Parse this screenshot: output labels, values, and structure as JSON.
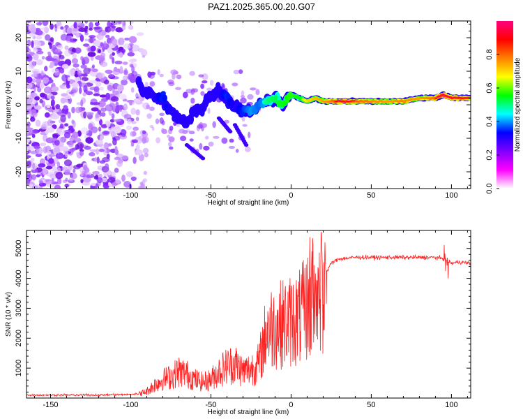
{
  "title": "PAZ1.2025.365.00.20.G07",
  "chart_data": [
    {
      "type": "heatmap",
      "name": "spectrogram",
      "xlabel": "Height of straight line (km)",
      "ylabel": "Frequency (Hz)",
      "xlim": [
        -165,
        112
      ],
      "ylim": [
        -25,
        25
      ],
      "xticks": [
        -150,
        -100,
        -50,
        0,
        50,
        100
      ],
      "yticks": [
        -20,
        -10,
        0,
        10,
        20
      ],
      "ridge": {
        "x": [
          -95,
          -90,
          -85,
          -80,
          -75,
          -70,
          -65,
          -60,
          -55,
          -50,
          -45,
          -40,
          -35,
          -30,
          -25,
          -20,
          -15,
          -10,
          -5,
          0,
          5,
          10,
          15,
          20,
          30,
          40,
          50,
          60,
          70,
          80,
          90,
          95,
          100,
          112
        ],
        "freq": [
          6,
          4,
          3,
          2,
          -2,
          -4,
          -5,
          -2,
          -1,
          3,
          4,
          2,
          -1,
          -2,
          -2,
          0,
          1,
          2,
          0,
          3,
          2,
          1,
          2,
          1,
          1,
          1,
          1,
          1,
          1,
          2,
          2,
          3,
          2,
          2
        ],
        "amplitude": [
          0.2,
          0.25,
          0.3,
          0.35,
          0.3,
          0.25,
          0.25,
          0.3,
          0.3,
          0.3,
          0.3,
          0.35,
          0.3,
          0.35,
          0.45,
          0.4,
          0.5,
          0.55,
          0.6,
          0.65,
          0.6,
          0.7,
          0.75,
          0.8,
          0.95,
          0.9,
          0.85,
          0.8,
          0.85,
          0.8,
          0.9,
          1.0,
          0.95,
          0.9
        ]
      }
    },
    {
      "type": "colorbar",
      "label": "Normalized spectral amplitude",
      "range": [
        0,
        1
      ],
      "ticks": [
        "0.0",
        "0.2",
        "0.4",
        "0.6",
        "0.8"
      ],
      "tick_values": [
        0.0,
        0.2,
        0.4,
        0.6,
        0.8
      ],
      "colormap": [
        "#ffffff",
        "#ff00ff",
        "#8000ff",
        "#0000ff",
        "#00ffff",
        "#00ff00",
        "#ffff00",
        "#ff8000",
        "#ff0000",
        "#ff0080"
      ]
    },
    {
      "type": "line",
      "name": "snr",
      "xlabel": "Height of straight line (km)",
      "ylabel": "SNR (10 * v/v)",
      "xlim": [
        -165,
        112
      ],
      "ylim": [
        0,
        5600
      ],
      "xticks": [
        -150,
        -100,
        -50,
        0,
        50,
        100
      ],
      "yticks": [
        1000,
        2000,
        3000,
        4000,
        5000
      ],
      "color": "#ff2020",
      "series": {
        "x": [
          -165,
          -150,
          -120,
          -100,
          -95,
          -90,
          -85,
          -80,
          -75,
          -70,
          -65,
          -60,
          -55,
          -50,
          -45,
          -40,
          -35,
          -30,
          -25,
          -20,
          -15,
          -10,
          -5,
          0,
          5,
          10,
          15,
          20,
          25,
          30,
          40,
          50,
          60,
          70,
          80,
          90,
          95,
          97,
          100,
          105,
          112
        ],
        "y": [
          100,
          100,
          100,
          120,
          150,
          250,
          500,
          700,
          800,
          1000,
          900,
          700,
          600,
          700,
          1000,
          1200,
          1300,
          1000,
          1100,
          1300,
          2600,
          2700,
          2800,
          2900,
          3000,
          3400,
          3700,
          4000,
          4500,
          4650,
          4700,
          4700,
          4700,
          4700,
          4700,
          4700,
          4650,
          4600,
          4500,
          4550,
          4500
        ]
      }
    }
  ]
}
